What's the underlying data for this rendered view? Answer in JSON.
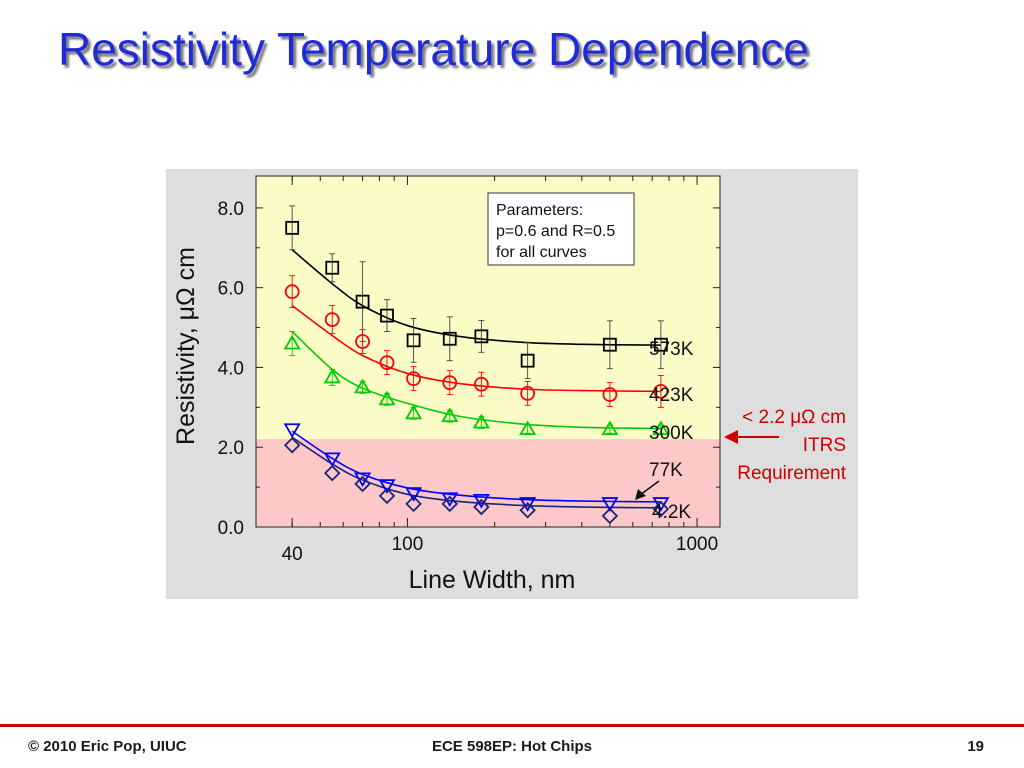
{
  "slide": {
    "title": "Resistivity Temperature Dependence",
    "footer_left": "© 2010 Eric Pop, UIUC",
    "footer_center": "ECE 598EP: Hot Chips",
    "footer_right": "19"
  },
  "colors": {
    "title": "#1f2bd6",
    "footer_rule": "#c00000",
    "plot_background_upper": "#fbfbc8",
    "plot_background_lower": "#fdc8c8",
    "panel_background": "#dedede",
    "annotation_red": "#cc0000"
  },
  "itrs_note": {
    "line1": "< 2.2 μΩ cm",
    "line2": "ITRS",
    "line3": "Requirement"
  },
  "chart_data": {
    "type": "scatter",
    "xlabel": "Line Width, nm",
    "ylabel": "Resistivity, μΩ cm",
    "x_scale": "log",
    "xlim": [
      30,
      1200
    ],
    "ylim": [
      0,
      8.8
    ],
    "x_ticks": [
      40,
      100,
      1000
    ],
    "x_tick_labels": [
      "40",
      "100",
      "1000"
    ],
    "y_ticks": [
      0,
      2,
      4,
      6,
      8
    ],
    "y_tick_labels": [
      "0.0",
      "2.0",
      "4.0",
      "6.0",
      "8.0"
    ],
    "shaded_region_upper_limit": 2.2,
    "legend_box": [
      "Parameters:",
      "p=0.6 and R=0.5",
      "for all curves"
    ],
    "series": [
      {
        "name": "573K",
        "color": "#000000",
        "marker": "square",
        "x": [
          40,
          55,
          70,
          85,
          105,
          140,
          180,
          260,
          500,
          750
        ],
        "y": [
          7.5,
          6.5,
          5.65,
          5.3,
          4.68,
          4.72,
          4.78,
          4.17,
          4.57,
          4.57
        ],
        "err": [
          0.55,
          0.35,
          1.0,
          0.4,
          0.55,
          0.55,
          0.4,
          0.45,
          0.6,
          0.6
        ],
        "fit_x": [
          40,
          55,
          70,
          100,
          150,
          250,
          400,
          750
        ],
        "fit_y": [
          6.95,
          6.1,
          5.55,
          5.05,
          4.78,
          4.63,
          4.58,
          4.56
        ]
      },
      {
        "name": "423K",
        "color": "#ff0000",
        "marker": "circle",
        "x": [
          40,
          55,
          70,
          85,
          105,
          140,
          180,
          260,
          500,
          750
        ],
        "y": [
          5.9,
          5.2,
          4.65,
          4.12,
          3.72,
          3.62,
          3.58,
          3.35,
          3.32,
          3.4
        ],
        "err": [
          0.4,
          0.35,
          0.3,
          0.3,
          0.3,
          0.3,
          0.3,
          0.3,
          0.3,
          0.4
        ],
        "fit_x": [
          40,
          55,
          70,
          100,
          150,
          250,
          400,
          750
        ],
        "fit_y": [
          5.55,
          4.8,
          4.3,
          3.85,
          3.6,
          3.46,
          3.42,
          3.4
        ]
      },
      {
        "name": "300K",
        "color": "#00cc00",
        "marker": "triangle-up",
        "x": [
          40,
          55,
          70,
          85,
          105,
          140,
          180,
          260,
          500,
          750
        ],
        "y": [
          4.6,
          3.75,
          3.5,
          3.2,
          2.85,
          2.78,
          2.62,
          2.45,
          2.45,
          2.45
        ],
        "err": [
          0.3,
          0.2,
          0.15,
          0.15,
          0.15,
          0.15,
          0.15,
          0.1,
          0.1,
          0.1
        ],
        "fit_x": [
          40,
          55,
          70,
          100,
          150,
          250,
          400,
          750
        ],
        "fit_y": [
          4.9,
          3.95,
          3.48,
          3.1,
          2.78,
          2.58,
          2.5,
          2.47
        ]
      },
      {
        "name": "77K",
        "color": "#0000ff",
        "marker": "triangle-down",
        "x": [
          40,
          55,
          70,
          85,
          105,
          140,
          180,
          260,
          500,
          750
        ],
        "y": [
          2.45,
          1.72,
          1.22,
          1.05,
          0.85,
          0.72,
          0.68,
          0.6,
          0.6,
          0.6
        ],
        "err": [
          0,
          0,
          0,
          0,
          0,
          0,
          0,
          0,
          0,
          0
        ],
        "fit_x": [
          40,
          55,
          70,
          100,
          150,
          250,
          400,
          750
        ],
        "fit_y": [
          2.4,
          1.72,
          1.32,
          0.98,
          0.8,
          0.69,
          0.65,
          0.63
        ]
      },
      {
        "name": "4.2K",
        "color": "#1a237e",
        "marker": "diamond",
        "x": [
          40,
          55,
          70,
          85,
          105,
          140,
          180,
          260,
          500,
          750
        ],
        "y": [
          2.05,
          1.35,
          1.08,
          0.78,
          0.58,
          0.58,
          0.5,
          0.42,
          0.28,
          0.45
        ],
        "err": [
          0,
          0,
          0,
          0,
          0,
          0,
          0,
          0,
          0,
          0
        ],
        "fit_x": [
          40,
          55,
          70,
          100,
          150,
          250,
          400,
          750
        ],
        "fit_y": [
          2.25,
          1.58,
          1.18,
          0.82,
          0.64,
          0.54,
          0.5,
          0.48
        ]
      }
    ]
  }
}
